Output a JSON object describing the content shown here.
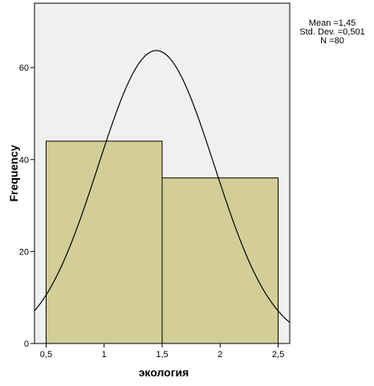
{
  "chart_data": {
    "type": "bar",
    "subtype": "histogram",
    "xlabel": "экология",
    "ylabel": "Frequency",
    "xlim": [
      0.4,
      2.6
    ],
    "ylim": [
      0,
      74
    ],
    "x_ticks": [
      0.5,
      1,
      1.5,
      2,
      2.5
    ],
    "x_tick_labels": [
      "0,5",
      "1",
      "1,5",
      "2",
      "2,5"
    ],
    "y_ticks": [
      0,
      20,
      40,
      60
    ],
    "y_tick_labels": [
      "0",
      "20",
      "40",
      "60"
    ],
    "bins": [
      {
        "start": 0.5,
        "end": 1.5,
        "value": 44
      },
      {
        "start": 1.5,
        "end": 2.5,
        "value": 36
      }
    ],
    "normal_curve": {
      "mean": 1.45,
      "sd": 0.501,
      "n": 80,
      "bin_width": 1
    },
    "colors": {
      "plot_bg": "#f0f0f0",
      "bar_fill": "#d3ce97",
      "bar_stroke": "#000000",
      "curve": "#000000"
    },
    "grid": false,
    "legend": "none"
  },
  "stats": {
    "mean": "Mean =1,45",
    "sd": "Std. Dev. =0,501",
    "n": "N =80"
  }
}
